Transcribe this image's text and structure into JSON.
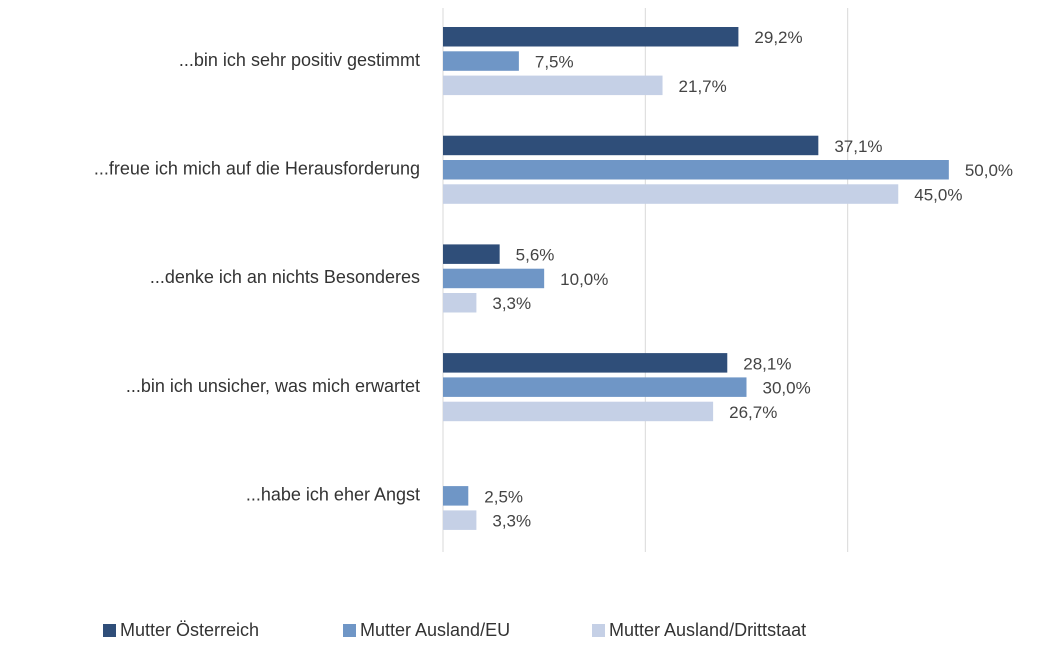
{
  "chart_data": {
    "type": "bar",
    "orientation": "horizontal",
    "categories": [
      "...bin ich sehr positiv gestimmt",
      "...freue ich mich auf die Herausforderung",
      "...denke ich an nichts Besonderes",
      "...bin ich unsicher, was mich erwartet",
      "...habe ich eher Angst"
    ],
    "series": [
      {
        "name": "Mutter Österreich",
        "color": "#2f4e79",
        "values": [
          29.2,
          37.1,
          5.6,
          28.1,
          null
        ],
        "value_labels": [
          "29,2%",
          "37,1%",
          "5,6%",
          "28,1%",
          null
        ]
      },
      {
        "name": "Mutter Ausland/EU",
        "color": "#6f96c6",
        "values": [
          7.5,
          50.0,
          10.0,
          30.0,
          2.5
        ],
        "value_labels": [
          "7,5%",
          "50,0%",
          "10,0%",
          "30,0%",
          "2,5%"
        ]
      },
      {
        "name": "Mutter Ausland/Drittstaat",
        "color": "#c5d0e6",
        "values": [
          21.7,
          45.0,
          3.3,
          26.7,
          3.3
        ],
        "value_labels": [
          "21,7%",
          "45,0%",
          "3,3%",
          "26,7%",
          "3,3%"
        ]
      }
    ],
    "xlim": [
      0,
      60
    ],
    "xticks": [
      0,
      20,
      40
    ],
    "grid": true,
    "legend": "bottom"
  }
}
